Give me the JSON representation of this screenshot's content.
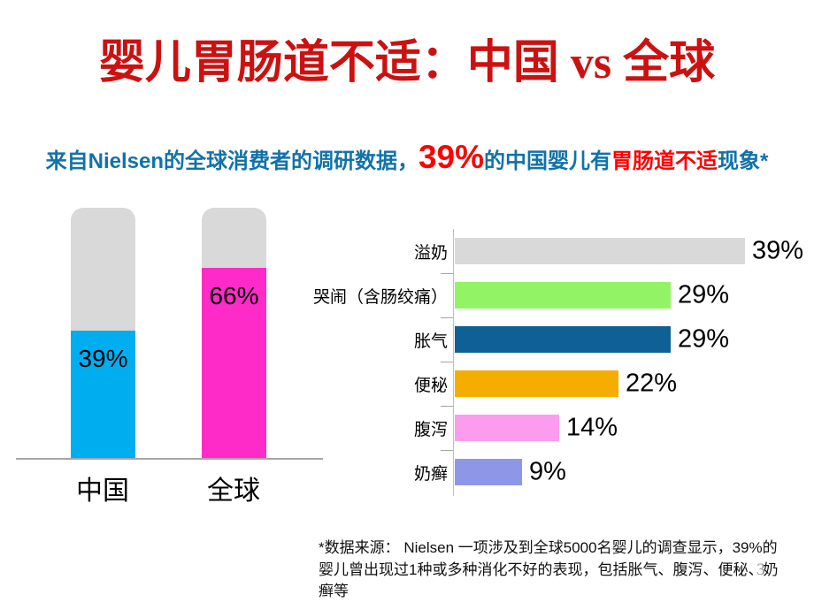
{
  "slide": {
    "title": "婴儿胃肠道不适：中国 vs 全球",
    "page_number": "3",
    "footnote": "*数据来源： Nielsen 一项涉及到全球5000名婴儿的调查显示，39%的婴儿曾出现过1种或多种消化不好的表现，包括胀气、腹泻、便秘、奶癣等"
  },
  "subtitle": {
    "segments": [
      {
        "text": "来自Nielsen的全球消费者的调研数据，",
        "color": "#1172A8",
        "size": "normal"
      },
      {
        "text": "39%",
        "color": "#FF0000",
        "size": "large"
      },
      {
        "text": "的中国婴儿有",
        "color": "#1172A8",
        "size": "normal"
      },
      {
        "text": "胃肠道不适",
        "color": "#FF0000",
        "size": "normal"
      },
      {
        "text": "现象*",
        "color": "#1172A8",
        "size": "normal"
      }
    ]
  },
  "chart_data": [
    {
      "type": "bar",
      "orientation": "vertical",
      "categories": [
        "中国",
        "全球"
      ],
      "values": [
        39,
        66
      ],
      "value_labels": [
        "39%",
        "66%"
      ],
      "bar_colors": [
        "#00AEEF",
        "#FF2BC8"
      ],
      "track_color": "#D9D9D9",
      "baseline_color": "#A6A6A6",
      "display_fill_fractions": [
        0.51,
        0.76
      ],
      "ylim": [
        0,
        100
      ],
      "grid": false,
      "legend": "none"
    },
    {
      "type": "bar",
      "orientation": "horizontal",
      "categories": [
        "溢奶",
        "哭闹（含肠绞痛）",
        "胀气",
        "便秘",
        "腹泻",
        "奶癣"
      ],
      "values": [
        39,
        29,
        29,
        22,
        14,
        9
      ],
      "value_labels": [
        "39%",
        "29%",
        "29%",
        "22%",
        "14%",
        "9%"
      ],
      "bar_colors": [
        "#D9D9D9",
        "#92F464",
        "#0F6195",
        "#F5AE00",
        "#FC9CEE",
        "#8E96E8"
      ],
      "xlim": [
        0,
        40
      ],
      "axis_color": "#BFBFBF",
      "tick_color": "#A6A6A6",
      "grid": false,
      "legend": "none"
    }
  ]
}
